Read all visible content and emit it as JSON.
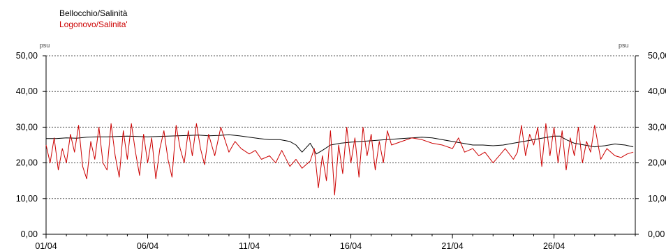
{
  "chart_data": {
    "type": "line",
    "title": "",
    "xlabel": "",
    "ylabel": "psu",
    "ylabel_right": "psu",
    "ylim": [
      0,
      50
    ],
    "yticks": [
      "0,00",
      "10,00",
      "20,00",
      "30,00",
      "40,00",
      "50,00"
    ],
    "ytick_values": [
      0,
      10,
      20,
      30,
      40,
      50
    ],
    "xlim": [
      1,
      30
    ],
    "xticks": [
      "01/04",
      "06/04",
      "11/04",
      "16/04",
      "21/04",
      "26/04"
    ],
    "xtick_values": [
      1,
      6,
      11,
      16,
      21,
      26
    ],
    "grid": true,
    "legend_placement": "top-left",
    "series": [
      {
        "name": "Bellocchio/Salinità",
        "color": "#000000",
        "x": [
          1.0,
          1.5,
          2.0,
          2.5,
          3.0,
          3.5,
          4.0,
          4.5,
          5.0,
          5.5,
          6.0,
          6.5,
          7.0,
          7.5,
          8.0,
          8.5,
          9.0,
          9.5,
          10.0,
          10.5,
          11.0,
          11.5,
          12.0,
          12.5,
          13.0,
          13.3,
          13.6,
          14.0,
          14.3,
          14.6,
          15.0,
          15.5,
          16.0,
          16.5,
          17.0,
          17.5,
          18.0,
          18.5,
          19.0,
          19.5,
          20.0,
          20.5,
          21.0,
          21.5,
          22.0,
          22.5,
          23.0,
          23.5,
          24.0,
          24.5,
          25.0,
          25.5,
          26.0,
          26.3,
          26.6,
          27.0,
          27.5,
          28.0,
          28.5,
          29.0,
          29.5,
          29.9
        ],
        "y": [
          26.8,
          26.8,
          27.0,
          26.9,
          27.2,
          27.3,
          27.3,
          27.4,
          27.5,
          27.4,
          27.3,
          27.4,
          27.5,
          27.6,
          27.7,
          27.8,
          27.6,
          27.7,
          27.9,
          27.6,
          27.2,
          26.8,
          26.5,
          26.5,
          26.0,
          25.0,
          23.0,
          25.5,
          22.5,
          23.5,
          25.0,
          25.5,
          25.8,
          26.0,
          26.2,
          26.4,
          26.6,
          26.8,
          27.0,
          27.2,
          27.0,
          26.5,
          26.0,
          25.5,
          25.0,
          25.0,
          24.8,
          25.0,
          25.5,
          26.0,
          26.5,
          27.0,
          27.5,
          27.5,
          26.5,
          25.5,
          25.0,
          24.5,
          24.8,
          25.3,
          25.0,
          24.5
        ]
      },
      {
        "name": "Logonovo/Salinita'",
        "color": "#cc0000",
        "x": [
          1.0,
          1.2,
          1.4,
          1.6,
          1.8,
          2.0,
          2.2,
          2.4,
          2.6,
          2.8,
          3.0,
          3.2,
          3.4,
          3.6,
          3.8,
          4.0,
          4.2,
          4.4,
          4.6,
          4.8,
          5.0,
          5.2,
          5.4,
          5.6,
          5.8,
          6.0,
          6.2,
          6.4,
          6.6,
          6.8,
          7.0,
          7.2,
          7.4,
          7.6,
          7.8,
          8.0,
          8.2,
          8.4,
          8.6,
          8.8,
          9.0,
          9.3,
          9.6,
          10.0,
          10.3,
          10.6,
          11.0,
          11.3,
          11.6,
          12.0,
          12.3,
          12.6,
          13.0,
          13.3,
          13.6,
          14.0,
          14.2,
          14.4,
          14.6,
          14.8,
          15.0,
          15.2,
          15.4,
          15.6,
          15.8,
          16.0,
          16.2,
          16.4,
          16.6,
          16.8,
          17.0,
          17.2,
          17.4,
          17.6,
          17.8,
          18.0,
          18.5,
          19.0,
          19.5,
          20.0,
          20.5,
          21.0,
          21.3,
          21.6,
          22.0,
          22.3,
          22.6,
          23.0,
          23.3,
          23.6,
          24.0,
          24.2,
          24.4,
          24.6,
          24.8,
          25.0,
          25.2,
          25.4,
          25.6,
          25.8,
          26.0,
          26.2,
          26.4,
          26.6,
          26.8,
          27.0,
          27.2,
          27.4,
          27.6,
          27.8,
          28.0,
          28.3,
          28.6,
          29.0,
          29.3,
          29.6,
          29.9
        ],
        "y": [
          25.0,
          20.0,
          27.0,
          18.0,
          24.0,
          20.0,
          28.0,
          23.0,
          30.5,
          19.0,
          15.5,
          26.0,
          21.0,
          30.0,
          20.0,
          18.0,
          31.0,
          22.0,
          16.0,
          29.0,
          21.0,
          31.0,
          23.0,
          16.5,
          28.0,
          20.0,
          27.0,
          15.5,
          24.0,
          29.0,
          21.0,
          16.0,
          30.5,
          24.0,
          20.0,
          29.0,
          22.0,
          31.0,
          24.0,
          19.5,
          28.0,
          22.0,
          30.0,
          23.0,
          26.0,
          24.0,
          22.5,
          23.5,
          21.0,
          22.0,
          20.0,
          23.5,
          19.0,
          21.0,
          18.5,
          20.5,
          24.0,
          13.0,
          22.0,
          15.0,
          29.0,
          11.0,
          25.0,
          17.0,
          30.0,
          20.0,
          27.0,
          16.0,
          30.0,
          22.0,
          28.0,
          18.0,
          26.0,
          20.0,
          29.0,
          25.0,
          26.0,
          27.0,
          26.5,
          25.5,
          25.0,
          24.0,
          27.0,
          23.0,
          24.0,
          22.0,
          23.0,
          20.0,
          22.0,
          24.0,
          21.0,
          23.0,
          30.5,
          22.0,
          28.0,
          25.0,
          30.0,
          19.0,
          31.0,
          22.0,
          30.0,
          20.0,
          29.0,
          18.0,
          27.0,
          22.0,
          30.0,
          20.0,
          26.0,
          23.0,
          30.5,
          21.0,
          24.0,
          22.0,
          21.5,
          22.5,
          23.0
        ]
      }
    ]
  }
}
